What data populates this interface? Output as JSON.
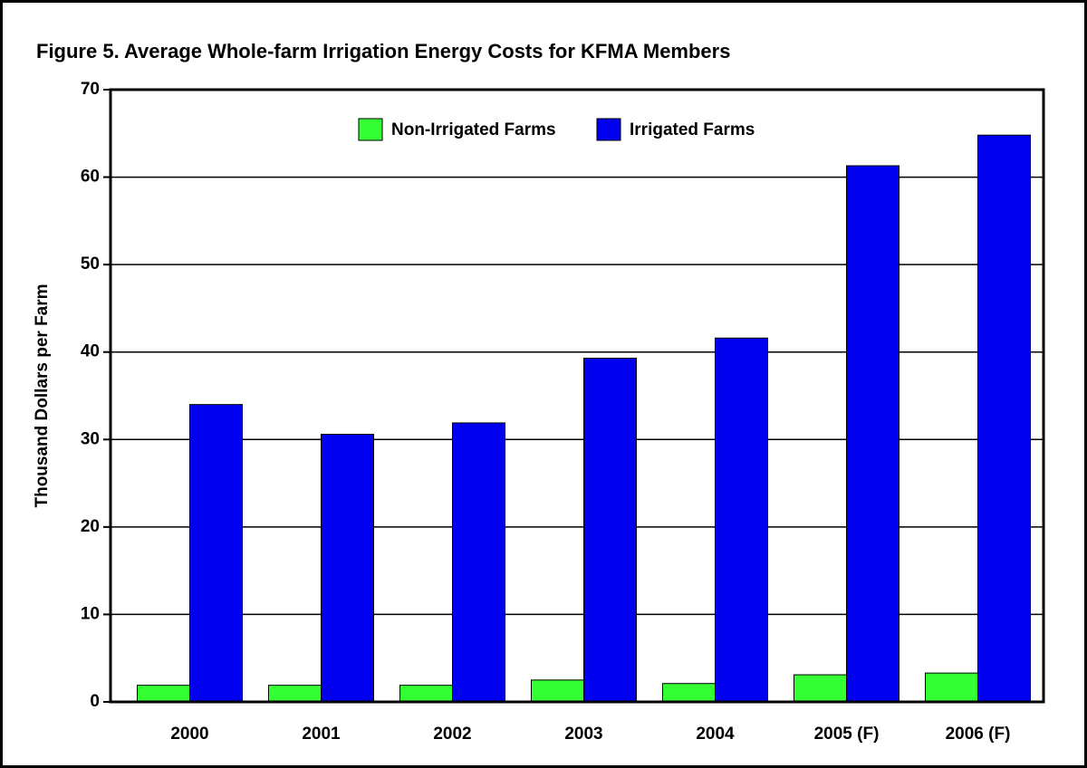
{
  "chart_data": {
    "type": "bar",
    "title": "Figure 5.  Average Whole-farm Irrigation Energy Costs for KFMA Members",
    "y_label": "Thousand Dollars per Farm",
    "categories": [
      "2000",
      "2001",
      "2002",
      "2003",
      "2004",
      "2005 (F)",
      "2006 (F)"
    ],
    "series": [
      {
        "name": "Non-Irrigated Farms",
        "color": "#33ff33",
        "values": [
          1.9,
          1.9,
          1.9,
          2.5,
          2.1,
          3.1,
          3.3
        ]
      },
      {
        "name": "Irrigated Farms",
        "color": "#0000ee",
        "values": [
          34.0,
          30.6,
          31.9,
          39.3,
          41.6,
          61.3,
          64.8
        ]
      }
    ],
    "ylim": [
      0,
      70
    ],
    "yticks": [
      0,
      10,
      20,
      30,
      40,
      50,
      60,
      70
    ],
    "grid": true,
    "legend": "upper center"
  }
}
